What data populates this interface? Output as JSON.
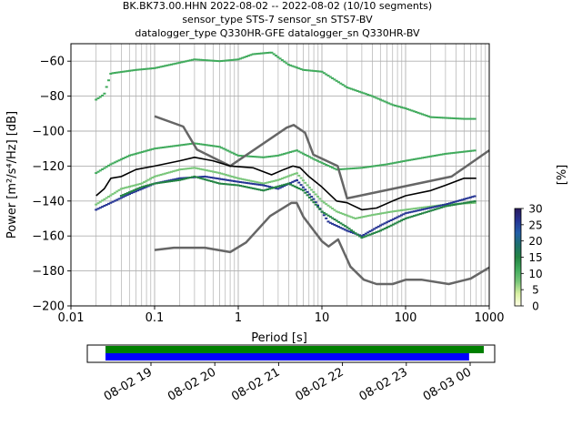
{
  "title_lines": [
    "BK.BK73.00.HHN   2022-08-02 -- 2022-08-02  (10/10 segments)",
    "sensor_type STS-7 sensor_sn STS7-BV",
    "datalogger_type Q330HR-GFE datalogger_sn Q330HR-BV"
  ],
  "chart_data": [
    {
      "type": "heatmap",
      "title": "BK.BK73.00.HHN   2022-08-02 -- 2022-08-02  (10/10 segments)",
      "xlabel": "Period [s]",
      "ylabel": "Power [m²/s⁴/Hz] [dB]",
      "xscale": "log",
      "xlim": [
        0.01,
        1000
      ],
      "ylim": [
        -200,
        -50
      ],
      "xticks": [
        {
          "v": 0.01,
          "label": "0.01"
        },
        {
          "v": 0.1,
          "label": "0.1"
        },
        {
          "v": 1,
          "label": "1"
        },
        {
          "v": 10,
          "label": "10"
        },
        {
          "v": 100,
          "label": "100"
        },
        {
          "v": 1000,
          "label": "1000"
        }
      ],
      "yticks": [
        {
          "v": -60,
          "label": "−60"
        },
        {
          "v": -80,
          "label": "−80"
        },
        {
          "v": -100,
          "label": "−100"
        },
        {
          "v": -120,
          "label": "−120"
        },
        {
          "v": -140,
          "label": "−140"
        },
        {
          "v": -160,
          "label": "−160"
        },
        {
          "v": -180,
          "label": "−180"
        },
        {
          "v": -200,
          "label": "−200"
        }
      ],
      "grid": true,
      "colorbar": {
        "label": "[%]",
        "range": [
          0,
          30
        ],
        "ticks": [
          {
            "v": 0,
            "label": "0"
          },
          {
            "v": 5,
            "label": "5"
          },
          {
            "v": 10,
            "label": "10"
          },
          {
            "v": 15,
            "label": "15"
          },
          {
            "v": 20,
            "label": "20"
          },
          {
            "v": 25,
            "label": "25"
          },
          {
            "v": 30,
            "label": "30"
          }
        ],
        "colors": [
          "#ffffe5",
          "#d9f0a3",
          "#78c679",
          "#41ab5d",
          "#238443",
          "#1d6f6c",
          "#225ea8",
          "#253494",
          "#2a1a5e"
        ]
      },
      "noise_models": {
        "high": [
          [
            0.1,
            -91.5
          ],
          [
            0.22,
            -97.4
          ],
          [
            0.32,
            -110.5
          ],
          [
            0.8,
            -120
          ],
          [
            3.8,
            -98
          ],
          [
            4.6,
            -96.5
          ],
          [
            6.3,
            -101
          ],
          [
            7.9,
            -113.5
          ],
          [
            15.4,
            -120
          ],
          [
            20,
            -138.5
          ],
          [
            354.8,
            -126
          ],
          [
            1000,
            -111
          ]
        ],
        "low": [
          [
            0.1,
            -168
          ],
          [
            0.17,
            -166.7
          ],
          [
            0.4,
            -166.7
          ],
          [
            0.8,
            -169.2
          ],
          [
            1.24,
            -163.7
          ],
          [
            2.4,
            -148.6
          ],
          [
            4.3,
            -141.1
          ],
          [
            5,
            -141.1
          ],
          [
            6,
            -149
          ],
          [
            10,
            -163
          ],
          [
            12,
            -166
          ],
          [
            15.6,
            -162
          ],
          [
            21.9,
            -177.5
          ],
          [
            31.6,
            -185
          ],
          [
            45,
            -187.5
          ],
          [
            70,
            -187.5
          ],
          [
            101,
            -185
          ],
          [
            154,
            -185
          ],
          [
            328,
            -187.5
          ],
          [
            600,
            -184.4
          ],
          [
            1000,
            -178
          ]
        ]
      },
      "mode_line": [
        [
          0.02,
          -137
        ],
        [
          0.025,
          -133
        ],
        [
          0.03,
          -127
        ],
        [
          0.04,
          -126
        ],
        [
          0.06,
          -122
        ],
        [
          0.1,
          -120
        ],
        [
          0.2,
          -117
        ],
        [
          0.3,
          -115
        ],
        [
          0.5,
          -117
        ],
        [
          0.8,
          -120
        ],
        [
          1.5,
          -121
        ],
        [
          2.5,
          -125
        ],
        [
          3.5,
          -122
        ],
        [
          4.5,
          -120
        ],
        [
          5.5,
          -121
        ],
        [
          7,
          -126
        ],
        [
          10,
          -132
        ],
        [
          15,
          -140
        ],
        [
          20,
          -141
        ],
        [
          30,
          -145
        ],
        [
          45,
          -144
        ],
        [
          70,
          -140
        ],
        [
          100,
          -137
        ],
        [
          200,
          -134
        ],
        [
          300,
          -131
        ],
        [
          500,
          -127
        ],
        [
          700,
          -127
        ]
      ],
      "psd_traces": [
        {
          "color": "#41ab5d",
          "points": [
            [
              0.02,
              -82
            ],
            [
              0.025,
              -79
            ],
            [
              0.03,
              -67
            ],
            [
              0.06,
              -65
            ],
            [
              0.1,
              -64
            ],
            [
              0.3,
              -59
            ],
            [
              0.6,
              -60
            ],
            [
              1,
              -59
            ],
            [
              1.5,
              -56
            ],
            [
              2.5,
              -55
            ],
            [
              4,
              -62
            ],
            [
              6,
              -65
            ],
            [
              10,
              -66
            ],
            [
              20,
              -75
            ],
            [
              40,
              -80
            ],
            [
              70,
              -85
            ],
            [
              100,
              -87
            ],
            [
              200,
              -92
            ],
            [
              500,
              -93
            ],
            [
              700,
              -93
            ]
          ]
        },
        {
          "color": "#41ab5d",
          "points": [
            [
              0.02,
              -124
            ],
            [
              0.03,
              -119
            ],
            [
              0.05,
              -114
            ],
            [
              0.1,
              -110
            ],
            [
              0.3,
              -107
            ],
            [
              0.6,
              -109
            ],
            [
              1,
              -114
            ],
            [
              2,
              -115
            ],
            [
              3,
              -114
            ],
            [
              5,
              -111
            ],
            [
              8,
              -116
            ],
            [
              15,
              -122
            ],
            [
              30,
              -121
            ],
            [
              60,
              -119
            ],
            [
              100,
              -117
            ],
            [
              300,
              -113
            ],
            [
              700,
              -111
            ]
          ]
        },
        {
          "color": "#78c679",
          "points": [
            [
              0.02,
              -142
            ],
            [
              0.04,
              -133
            ],
            [
              0.07,
              -130
            ],
            [
              0.1,
              -126
            ],
            [
              0.2,
              -122
            ],
            [
              0.3,
              -121
            ],
            [
              0.6,
              -124
            ],
            [
              1,
              -127
            ],
            [
              2,
              -130
            ],
            [
              3,
              -128
            ],
            [
              5,
              -124
            ],
            [
              7,
              -132
            ],
            [
              10,
              -140
            ],
            [
              15,
              -146
            ],
            [
              25,
              -150
            ],
            [
              40,
              -148
            ],
            [
              70,
              -146
            ],
            [
              100,
              -145
            ],
            [
              300,
              -142
            ],
            [
              700,
              -141
            ]
          ]
        },
        {
          "color": "#253494",
          "points": [
            [
              0.02,
              -145
            ],
            [
              0.03,
              -141
            ],
            [
              0.05,
              -136
            ],
            [
              0.1,
              -130
            ],
            [
              0.2,
              -127
            ],
            [
              0.4,
              -126
            ],
            [
              1,
              -129
            ],
            [
              2,
              -131
            ],
            [
              3,
              -133
            ],
            [
              5,
              -128
            ],
            [
              8,
              -139
            ],
            [
              12,
              -152
            ],
            [
              20,
              -157
            ],
            [
              30,
              -160
            ],
            [
              50,
              -154
            ],
            [
              100,
              -147
            ],
            [
              300,
              -142
            ],
            [
              700,
              -137
            ]
          ]
        },
        {
          "color": "#238443",
          "points": [
            [
              0.04,
              -137
            ],
            [
              0.07,
              -132
            ],
            [
              0.1,
              -130
            ],
            [
              0.2,
              -128
            ],
            [
              0.3,
              -126
            ],
            [
              0.6,
              -130
            ],
            [
              1,
              -131
            ],
            [
              2,
              -134
            ],
            [
              4,
              -130
            ],
            [
              6,
              -134
            ],
            [
              10,
              -146
            ],
            [
              20,
              -155
            ],
            [
              30,
              -161
            ],
            [
              50,
              -157
            ],
            [
              100,
              -150
            ],
            [
              300,
              -143
            ],
            [
              700,
              -140
            ]
          ]
        }
      ]
    },
    {
      "type": "bar",
      "title": "",
      "xticks": [
        "08-02 19",
        "08-02 20",
        "08-02 21",
        "08-02 22",
        "08-02 23",
        "08-03 00"
      ],
      "series": [
        {
          "color": "#008000",
          "range": [
            0.0,
            1.0
          ]
        },
        {
          "color": "#0000ff",
          "range": [
            0.0,
            0.98
          ]
        }
      ]
    }
  ]
}
